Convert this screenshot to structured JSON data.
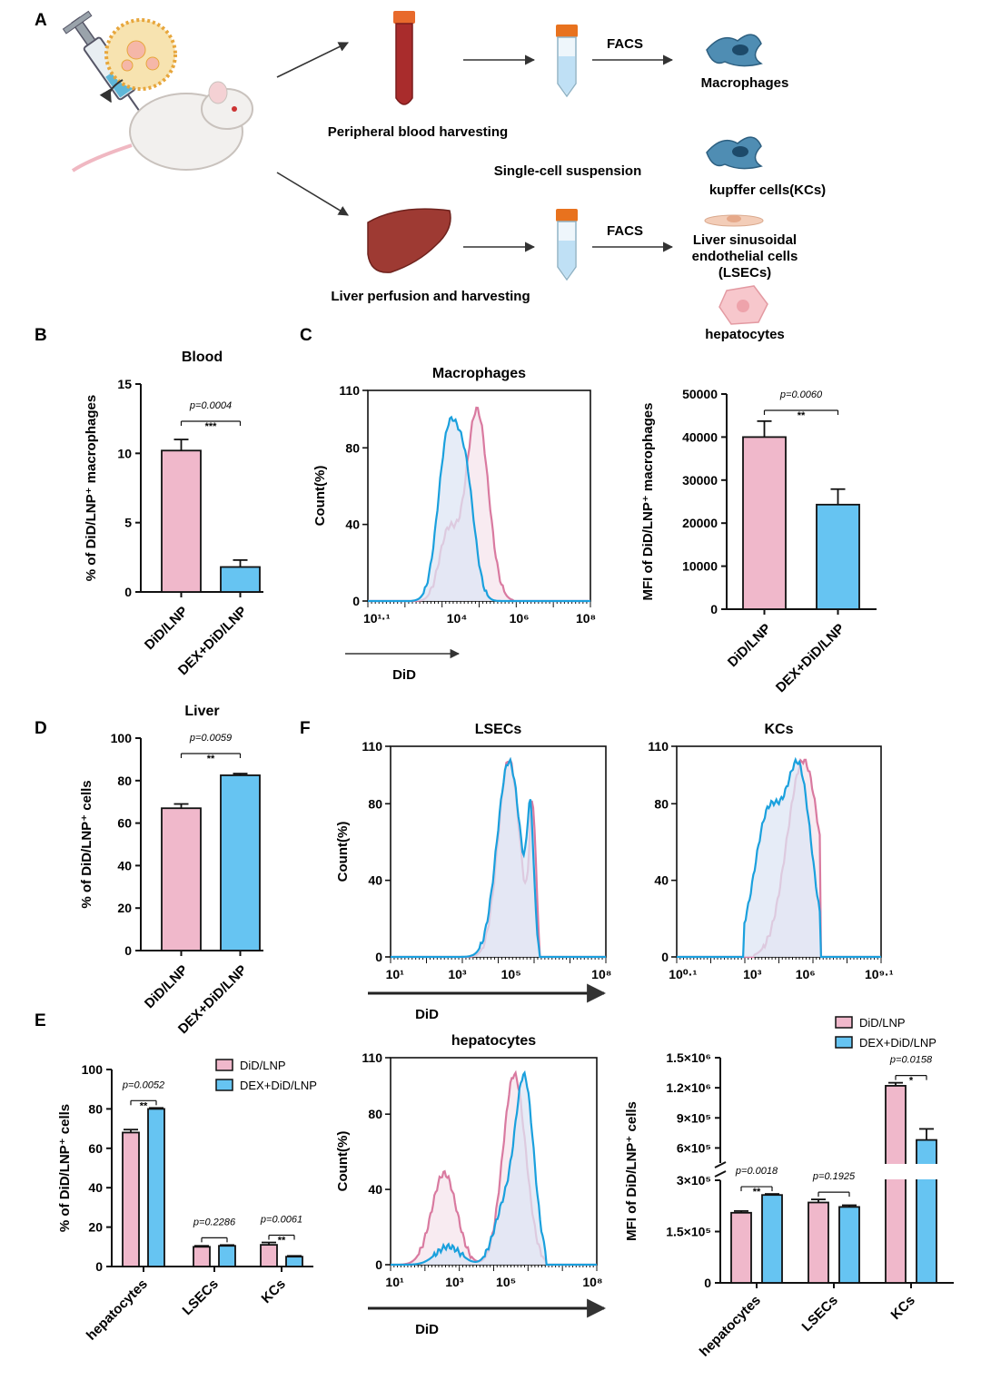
{
  "colors": {
    "pink": "#f0b8cb",
    "pinkLine": "#d97aa0",
    "blue": "#66c4f2",
    "blueLine": "#1aa0dd",
    "pinkFill": "#f6e4ec",
    "blueFill": "#dde6f4"
  },
  "panelA": {
    "letter": "A",
    "steps": {
      "blood": "Peripheral blood harvesting",
      "suspension": "Single-cell suspension",
      "liver": "Liver perfusion and harvesting",
      "facs1": "FACS",
      "facs2": "FACS"
    },
    "cells": {
      "macrophages": "Macrophages",
      "kcs": "kupffer cells(KCs)",
      "lsecs1": "Liver sinusoidal",
      "lsecs2": "endothelial cells",
      "lsecs3": "(LSECs)",
      "hepatocytes": "hepatocytes"
    }
  },
  "panelB": {
    "letter": "B"
  },
  "panelC": {
    "letter": "C"
  },
  "panelD": {
    "letter": "D"
  },
  "panelE": {
    "letter": "E"
  },
  "panelF": {
    "letter": "F"
  },
  "chart_data": [
    {
      "id": "B",
      "type": "bar",
      "title": "Blood",
      "ylabel": "% of DiD/LNP⁺ macrophages",
      "categories": [
        "DiD/LNP",
        "DEX+DiD/LNP"
      ],
      "values": [
        10.2,
        1.8
      ],
      "errors": [
        0.8,
        0.5
      ],
      "ylim": [
        0,
        15
      ],
      "yticks": [
        "0",
        "5",
        "10",
        "15"
      ],
      "annotations": [
        {
          "p": "p=0.0004",
          "stars": "***"
        }
      ]
    },
    {
      "id": "C-hist",
      "type": "line",
      "title": "Macrophages",
      "ylabel": "Count(%)",
      "xlabel": "DiD",
      "yticks": [
        "0",
        "40",
        "80",
        "110"
      ],
      "xticks": [
        "10¹·¹",
        "10⁴",
        "10⁶",
        "10⁸"
      ],
      "series": [
        {
          "name": "DiD/LNP",
          "peak_log10": 4.3
        },
        {
          "name": "DEX+DiD/LNP",
          "peak_log10": 3.7
        }
      ]
    },
    {
      "id": "C-bar",
      "type": "bar",
      "ylabel": "MFI of DiD/LNP⁺ macrophages",
      "categories": [
        "DiD/LNP",
        "DEX+DiD/LNP"
      ],
      "values": [
        40000,
        24300
      ],
      "errors": [
        3700,
        3600
      ],
      "ylim": [
        0,
        50000
      ],
      "yticks": [
        "0",
        "10000",
        "20000",
        "30000",
        "40000",
        "50000"
      ],
      "annotations": [
        {
          "p": "p=0.0060",
          "stars": "**"
        }
      ]
    },
    {
      "id": "D",
      "type": "bar",
      "title": "Liver",
      "ylabel": "% of DiD/LNP⁺ cells",
      "categories": [
        "DiD/LNP",
        "DEX+DiD/LNP"
      ],
      "values": [
        67,
        82.5
      ],
      "errors": [
        2,
        0.8
      ],
      "ylim": [
        0,
        100
      ],
      "yticks": [
        "0",
        "20",
        "40",
        "60",
        "80",
        "100"
      ],
      "annotations": [
        {
          "p": "p=0.0059",
          "stars": "**"
        }
      ]
    },
    {
      "id": "E",
      "type": "bar",
      "ylabel": "% of DiD/LNP⁺ cells",
      "categories": [
        "hepatocytes",
        "LSECs",
        "KCs"
      ],
      "series": [
        {
          "name": "DiD/LNP",
          "values": [
            68,
            10,
            11
          ],
          "errors": [
            1.5,
            0.5,
            1.2
          ]
        },
        {
          "name": "DEX+DiD/LNP",
          "values": [
            80,
            10.5,
            5
          ],
          "errors": [
            0.5,
            0.4,
            0.4
          ]
        }
      ],
      "ylim": [
        0,
        100
      ],
      "yticks": [
        "0",
        "20",
        "40",
        "60",
        "80",
        "100"
      ],
      "annotations": [
        {
          "p": "p=0.0052",
          "stars": "**"
        },
        {
          "p": "p=0.2286",
          "stars": ""
        },
        {
          "p": "p=0.0061",
          "stars": "**"
        }
      ]
    },
    {
      "id": "F-LSECs",
      "type": "line",
      "title": "LSECs",
      "ylabel": "Count(%)",
      "xlabel": "DiD",
      "yticks": [
        "0",
        "40",
        "80",
        "110"
      ],
      "xticks": [
        "10¹",
        "10³",
        "10⁵",
        "10⁸"
      ],
      "series": [
        {
          "name": "DiD/LNP",
          "peak_log10": 5.0
        },
        {
          "name": "DEX+DiD/LNP",
          "peak_log10": 5.0
        }
      ]
    },
    {
      "id": "F-KCs",
      "type": "line",
      "title": "KCs",
      "yticks": [
        "0",
        "40",
        "80",
        "110"
      ],
      "xticks": [
        "10⁰·¹",
        "10³",
        "10⁶",
        "10⁹·¹"
      ],
      "series": [
        {
          "name": "DiD/LNP",
          "peak_log10": 6.3
        },
        {
          "name": "DEX+DiD/LNP",
          "peak_log10": 5.9
        }
      ]
    },
    {
      "id": "F-hepatocytes",
      "type": "line",
      "title": "hepatocytes",
      "ylabel": "Count(%)",
      "xlabel": "DiD",
      "yticks": [
        "0",
        "40",
        "80",
        "110"
      ],
      "xticks": [
        "10¹",
        "10³",
        "10⁵",
        "10⁸"
      ],
      "series": [
        {
          "name": "DiD/LNP",
          "peak_log10": 5.1
        },
        {
          "name": "DEX+DiD/LNP",
          "peak_log10": 5.5
        }
      ]
    },
    {
      "id": "F-bar",
      "type": "bar",
      "ylabel": "MFI of DiD/LNP⁺ cells",
      "categories": [
        "hepatocytes",
        "LSECs",
        "KCs"
      ],
      "series": [
        {
          "name": "DiD/LNP",
          "values": [
            205000,
            235000,
            1220000
          ],
          "errors": [
            5000,
            9000,
            30000
          ]
        },
        {
          "name": "DEX+DiD/LNP",
          "values": [
            257000,
            222000,
            680000
          ],
          "errors": [
            3000,
            5000,
            110000
          ]
        }
      ],
      "ylim": [
        0,
        1500000
      ],
      "yticks_low": [
        "0",
        "1.5×10⁵",
        "3×10⁵"
      ],
      "yticks_high": [
        "6×10⁵",
        "9×10⁵",
        "1.2×10⁶",
        "1.5×10⁶"
      ],
      "annotations": [
        {
          "p": "p=0.0018",
          "stars": "**"
        },
        {
          "p": "p=0.1925",
          "stars": ""
        },
        {
          "p": "p=0.0158",
          "stars": "*"
        }
      ]
    }
  ]
}
